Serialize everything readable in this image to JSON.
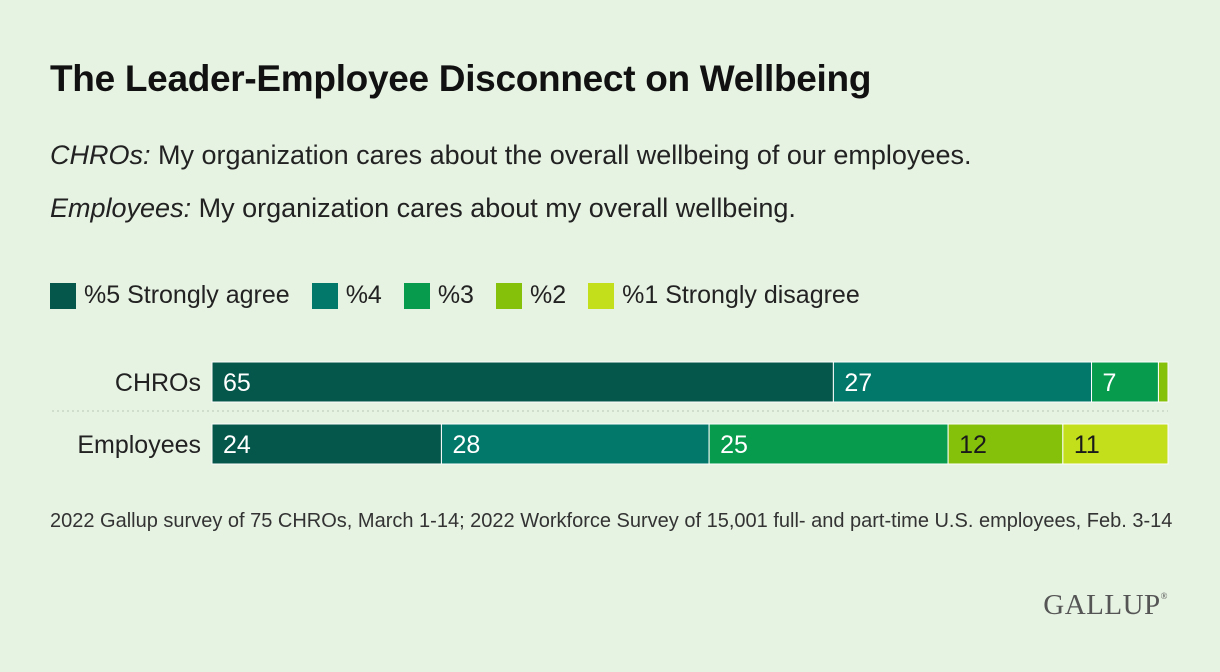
{
  "title": "The Leader-Employee Disconnect on Wellbeing",
  "subtitle": {
    "line1_prefix": "CHROs:",
    "line1_text": " My organization cares about the overall wellbeing of our employees.",
    "line2_prefix": "Employees:",
    "line2_text": " My organization cares about my overall wellbeing."
  },
  "footnote": "2022 Gallup survey of 75 CHROs, March 1-14; 2022 Workforce Survey of 15,001 full- and part-time U.S. employees, Feb. 3-14",
  "logo": "GALLUP",
  "colors": {
    "s5": "#04574a",
    "s4": "#02786a",
    "s3": "#079c4d",
    "s2": "#85c00b",
    "s1": "#c3de1a"
  },
  "chart_data": {
    "type": "bar",
    "orientation": "horizontal",
    "stacked": true,
    "categories": [
      "CHROs",
      "Employees"
    ],
    "series": [
      {
        "name": "%5 Strongly agree",
        "values": [
          65,
          24
        ],
        "color": "#04574a"
      },
      {
        "name": "%4",
        "values": [
          27,
          28
        ],
        "color": "#02786a"
      },
      {
        "name": "%3",
        "values": [
          7,
          25
        ],
        "color": "#079c4d"
      },
      {
        "name": "%2",
        "values": [
          1,
          12
        ],
        "color": "#85c00b"
      },
      {
        "name": "%1 Strongly disagree",
        "values": [
          0,
          11
        ],
        "color": "#c3de1a"
      }
    ],
    "data_labels": [
      [
        "65",
        "27",
        "7",
        "",
        ""
      ],
      [
        "24",
        "28",
        "25",
        "12",
        "11"
      ]
    ],
    "legend_position": "top",
    "grid": false
  }
}
